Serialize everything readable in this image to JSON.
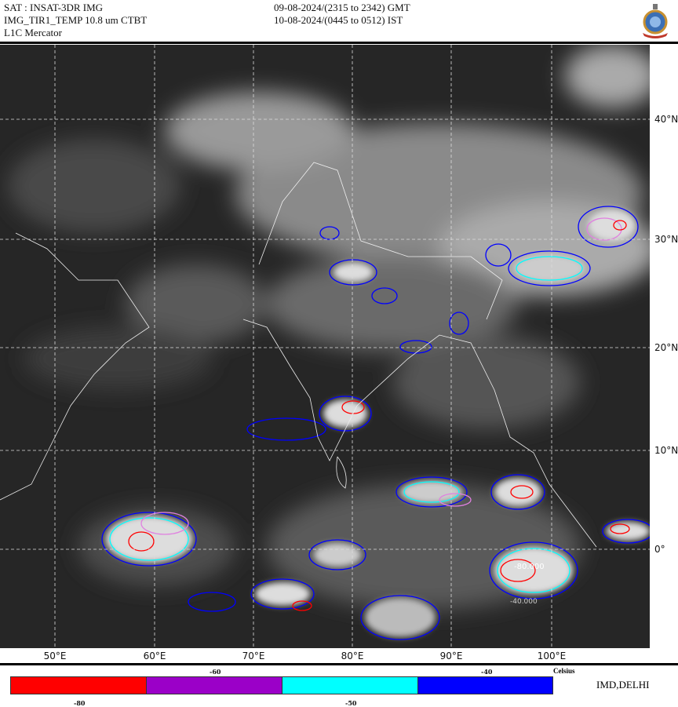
{
  "header": {
    "satellite": "SAT : INSAT-3DR IMG",
    "product": "IMG_TIR1_TEMP 10.8 um CTBT",
    "projection": "L1C Mercator",
    "time_gmt": "09-08-2024/(2315 to 2342) GMT",
    "time_ist": "10-08-2024/(0445 to 0512) IST",
    "logo": "IMD emblem"
  },
  "map": {
    "longitude_labels": [
      "50°E",
      "60°E",
      "70°E",
      "80°E",
      "90°E",
      "100°E"
    ],
    "latitude_labels": [
      "40°N",
      "30°N",
      "20°N",
      "10°N",
      "0°"
    ],
    "contour_labels": [
      "-40.000",
      "-80.000"
    ],
    "grid": true
  },
  "legend": {
    "unit": "Celsius",
    "bins": [
      {
        "color": "#ff0000",
        "label": "-80"
      },
      {
        "color": "#9b00c8",
        "label": "-60"
      },
      {
        "color": "#00ffff",
        "label": "-50"
      },
      {
        "color": "#0000ff",
        "label": "-40"
      }
    ]
  },
  "footer": {
    "organization": "IMD,DELHI"
  }
}
